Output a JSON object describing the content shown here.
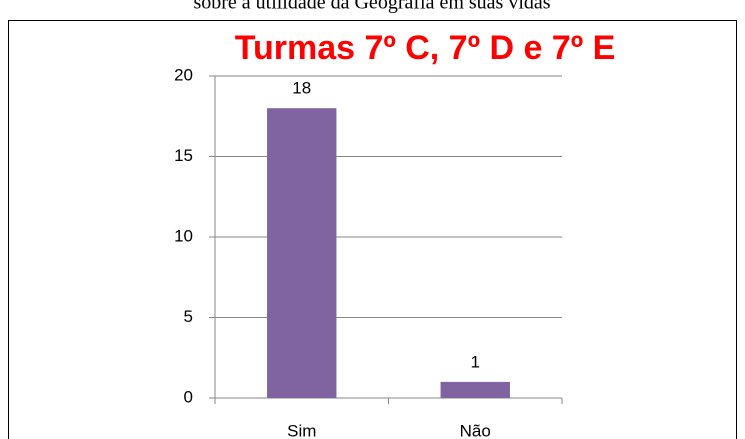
{
  "caption": "sobre a utilidade da Geografia em suas vidas",
  "chart_data": {
    "type": "bar",
    "title": "Turmas 7º C, 7º D e 7º E",
    "categories": [
      "Sim",
      "Não"
    ],
    "values": [
      18,
      1
    ],
    "color": "#8064a2",
    "ylim": [
      0,
      20
    ],
    "yticks": [
      0,
      5,
      10,
      15,
      20
    ],
    "grid": true
  }
}
